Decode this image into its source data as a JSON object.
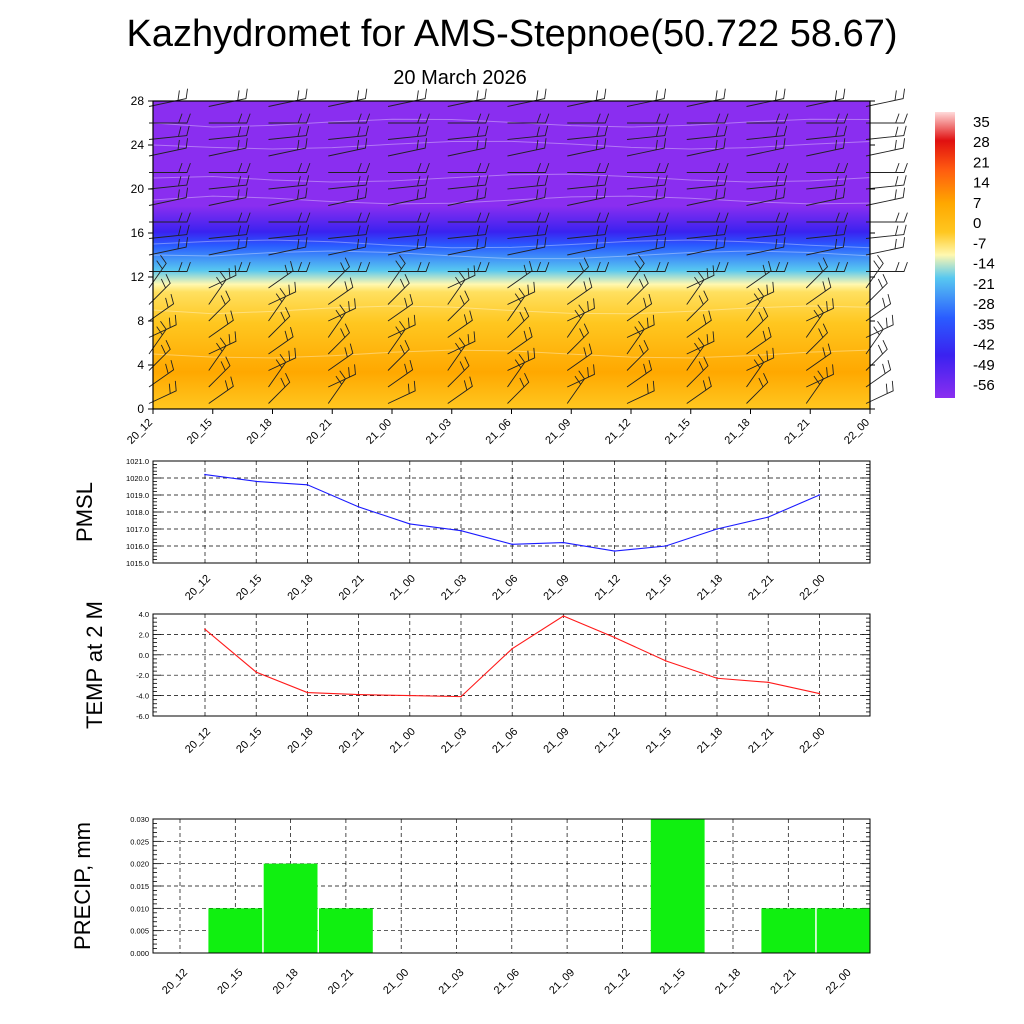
{
  "title": "Kazhydromet for AMS-Stepnoe(50.722 58.67)",
  "subtitle": "20 March 2026",
  "chart_data": [
    {
      "type": "heatmap",
      "name": "vertical-cross-section",
      "x_categories": [
        "20_12",
        "20_15",
        "20_18",
        "20_21",
        "21_00",
        "21_03",
        "21_06",
        "21_09",
        "21_12",
        "21_15",
        "21_18",
        "21_21",
        "22_00"
      ],
      "ylim": [
        0,
        28
      ],
      "yticks": [
        "0",
        "4",
        "8",
        "12",
        "16",
        "20",
        "24",
        "28"
      ],
      "colorbar_labels": [
        "35",
        "28",
        "21",
        "14",
        "7",
        "0",
        "-7",
        "-14",
        "-21",
        "-28",
        "-35",
        "-42",
        "-49",
        "-56"
      ],
      "colors": {
        "warm_low": "#ffa800",
        "warm": "#ffc720",
        "cream": "#fff8b0",
        "light_blue": "#58c8f0",
        "blue": "#2a5cff",
        "dark_blue": "#3a22f0",
        "violet": "#8a2ef0",
        "red": "#e01010"
      }
    },
    {
      "type": "line",
      "name": "pmsl",
      "ylabel": "PMSL",
      "categories": [
        "20_12",
        "20_15",
        "20_18",
        "20_21",
        "21_00",
        "21_03",
        "21_06",
        "21_09",
        "21_12",
        "21_15",
        "21_18",
        "21_21",
        "22_00"
      ],
      "values": [
        1020.2,
        1019.8,
        1019.6,
        1018.3,
        1017.3,
        1016.9,
        1016.1,
        1016.2,
        1015.7,
        1016.0,
        1017.0,
        1017.7,
        1019.0
      ],
      "ylim": [
        1015.0,
        1021.0
      ],
      "yticks": [
        "1015.0",
        "1016.0",
        "1017.0",
        "1018.0",
        "1019.0",
        "1020.0",
        "1021.0"
      ],
      "color": "#1a1aff"
    },
    {
      "type": "line",
      "name": "temp-2m",
      "ylabel": "TEMP at 2 M",
      "categories": [
        "20_12",
        "20_15",
        "20_18",
        "20_21",
        "21_00",
        "21_03",
        "21_06",
        "21_09",
        "21_12",
        "21_15",
        "21_18",
        "21_21",
        "22_00"
      ],
      "values": [
        2.5,
        -1.7,
        -3.7,
        -3.9,
        -4.0,
        -4.1,
        0.6,
        3.8,
        1.7,
        -0.6,
        -2.3,
        -2.7,
        -3.8
      ],
      "ylim": [
        -6.0,
        4.0
      ],
      "yticks": [
        "-6.0",
        "-4.0",
        "-2.0",
        "0.0",
        "2.0",
        "4.0"
      ],
      "color": "#ff1a1a"
    },
    {
      "type": "bar",
      "name": "precip",
      "ylabel": "PRECIP, mm",
      "categories": [
        "20_12",
        "20_15",
        "20_18",
        "20_21",
        "21_00",
        "21_03",
        "21_06",
        "21_09",
        "21_12",
        "21_15",
        "21_18",
        "21_21",
        "22_00"
      ],
      "values": [
        0,
        0.01,
        0.02,
        0.01,
        0,
        0,
        0,
        0,
        0,
        0.03,
        0,
        0.01,
        0.01
      ],
      "ylim": [
        0,
        0.03
      ],
      "yticks": [
        "0.000",
        "0.005",
        "0.010",
        "0.015",
        "0.020",
        "0.025",
        "0.030"
      ],
      "color": "#10f010"
    }
  ]
}
